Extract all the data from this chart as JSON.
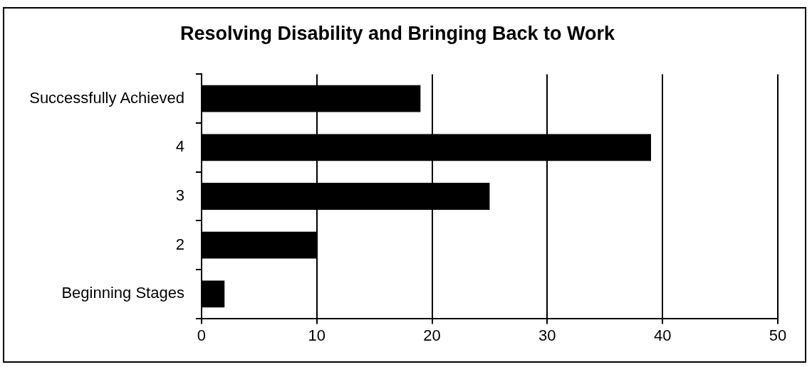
{
  "chart_data": {
    "type": "bar",
    "orientation": "horizontal",
    "title": "Resolving Disability and Bringing Back to Work",
    "categories": [
      "Successfully Achieved",
      "4",
      "3",
      "2",
      "Beginning Stages"
    ],
    "values": [
      19,
      39,
      25,
      10,
      2
    ],
    "color": "#000000",
    "xlim": [
      0,
      50
    ],
    "xticks": [
      0,
      10,
      20,
      30,
      40,
      50
    ],
    "grid": "x",
    "legend": false
  }
}
